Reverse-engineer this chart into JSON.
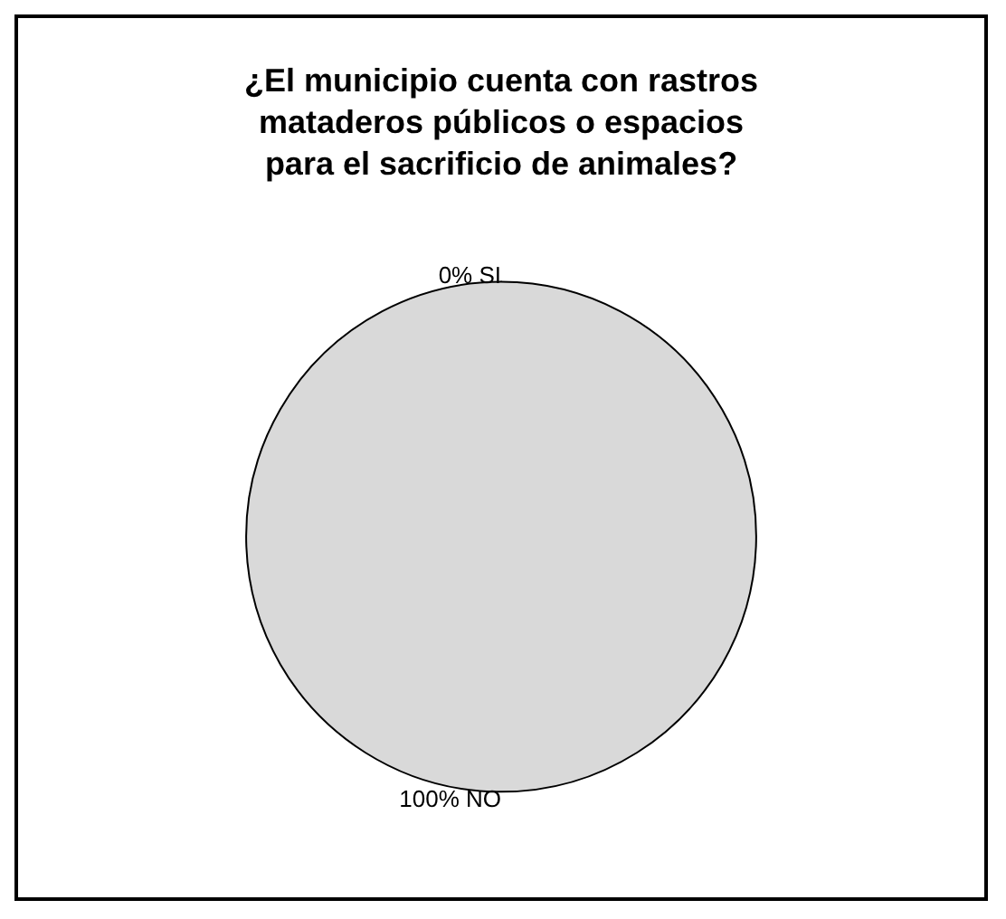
{
  "chart_data": {
    "type": "pie",
    "title": "¿El municipio cuenta con rastros mataderos públicos o espacios para el sacrificio de animales?",
    "categories": [
      "SI",
      "NO"
    ],
    "values": [
      0,
      100
    ],
    "colors": [
      "#d9d9d9",
      "#d9d9d9"
    ],
    "value_labels": [
      "0%",
      "100%"
    ],
    "legend": false
  }
}
